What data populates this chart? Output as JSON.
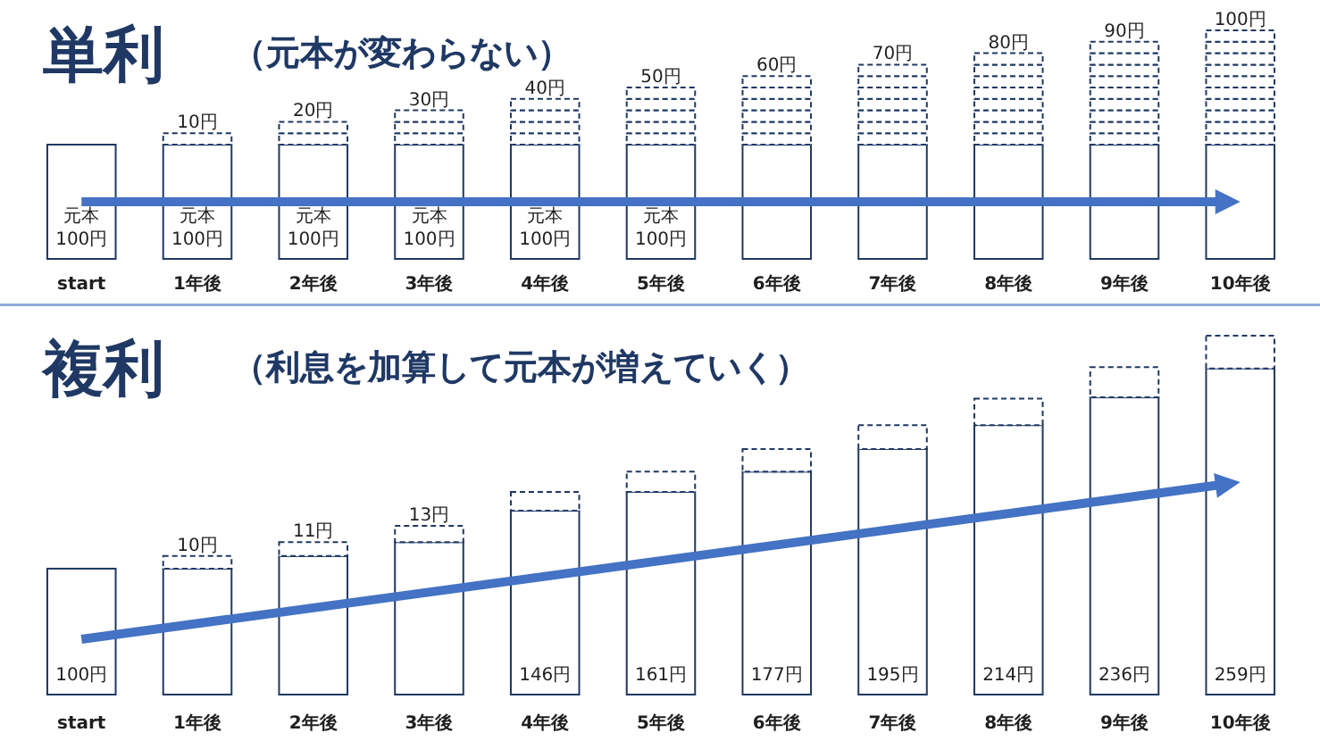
{
  "chart_data": [
    {
      "type": "bar",
      "title": "単利",
      "subtitle": "（元本が変わらない）",
      "stacked": true,
      "categories": [
        "start",
        "1年後",
        "2年後",
        "3年後",
        "4年後",
        "5年後",
        "6年後",
        "7年後",
        "8年後",
        "9年後",
        "10年後"
      ],
      "series": [
        {
          "color": "#1f3864",
          "line_style": "solid",
          "values": [
            100,
            100,
            100,
            100,
            100,
            100,
            100,
            100,
            100,
            100,
            100
          ],
          "value_labels": [
            "元本\n100円",
            "元本\n100円",
            "元本\n100円",
            "元本\n100円",
            "元本\n100円",
            "元本\n100円",
            null,
            null,
            null,
            null,
            null
          ]
        },
        {
          "color": "#1f3864",
          "line_style": "dashed",
          "values": [
            null,
            10,
            10,
            10,
            10,
            10,
            10,
            10,
            10,
            10,
            10
          ]
        },
        {
          "color": "#1f3864",
          "line_style": "dashed",
          "values": [
            null,
            null,
            10,
            10,
            10,
            10,
            10,
            10,
            10,
            10,
            10
          ]
        },
        {
          "color": "#1f3864",
          "line_style": "dashed",
          "values": [
            null,
            null,
            null,
            10,
            10,
            10,
            10,
            10,
            10,
            10,
            10
          ]
        },
        {
          "color": "#1f3864",
          "line_style": "dashed",
          "values": [
            null,
            null,
            null,
            null,
            10,
            10,
            10,
            10,
            10,
            10,
            10
          ]
        },
        {
          "color": "#1f3864",
          "line_style": "dashed",
          "values": [
            null,
            null,
            null,
            null,
            null,
            10,
            10,
            10,
            10,
            10,
            10
          ]
        },
        {
          "color": "#1f3864",
          "line_style": "dashed",
          "values": [
            null,
            null,
            null,
            null,
            null,
            null,
            10,
            10,
            10,
            10,
            10
          ]
        },
        {
          "color": "#1f3864",
          "line_style": "dashed",
          "values": [
            null,
            null,
            null,
            null,
            null,
            null,
            null,
            10,
            10,
            10,
            10
          ]
        },
        {
          "color": "#1f3864",
          "line_style": "dashed",
          "values": [
            null,
            null,
            null,
            null,
            null,
            null,
            null,
            null,
            10,
            10,
            10
          ]
        },
        {
          "color": "#1f3864",
          "line_style": "dashed",
          "values": [
            null,
            null,
            null,
            null,
            null,
            null,
            null,
            null,
            null,
            10,
            10
          ]
        },
        {
          "color": "#1f3864",
          "line_style": "dashed",
          "values": [
            null,
            null,
            null,
            null,
            null,
            null,
            null,
            null,
            null,
            null,
            10
          ]
        }
      ],
      "annotations": [
        {
          "text": "10円",
          "x": "1年後",
          "y": 110
        },
        {
          "text": "20円",
          "x": "2年後",
          "y": 120
        },
        {
          "text": "30円",
          "x": "3年後",
          "y": 130
        },
        {
          "text": "40円",
          "x": "4年後",
          "y": 140
        },
        {
          "text": "50円",
          "x": "5年後",
          "y": 150
        },
        {
          "text": "60円",
          "x": "6年後",
          "y": 160
        },
        {
          "text": "70円",
          "x": "7年後",
          "y": 170
        },
        {
          "text": "80円",
          "x": "8年後",
          "y": 180
        },
        {
          "text": "90円",
          "x": "9年後",
          "y": 190
        },
        {
          "text": "100円",
          "x": "10年後",
          "y": 200
        }
      ]
    },
    {
      "type": "bar",
      "title": "複利",
      "subtitle": "（利息を加算して元本が増えていく）",
      "stacked": true,
      "categories": [
        "start",
        "1年後",
        "2年後",
        "3年後",
        "4年後",
        "5年後",
        "6年後",
        "7年後",
        "8年後",
        "9年後",
        "10年後"
      ],
      "series": [
        {
          "color": "#1f3864",
          "line_style": "solid",
          "values": [
            100,
            100,
            110,
            121,
            146,
            161,
            177,
            195,
            214,
            236,
            259
          ],
          "value_labels": [
            "100円",
            null,
            null,
            null,
            "146円",
            "161円",
            "177円",
            "195円",
            "214円",
            "236円",
            "259円"
          ]
        },
        {
          "color": "#1f3864",
          "line_style": "dashed",
          "values": [
            null,
            10,
            11,
            13,
            15,
            16,
            18,
            19,
            21,
            24,
            26
          ],
          "value_labels": [
            null,
            "10円",
            "11円",
            "13円",
            null,
            null,
            null,
            null,
            null,
            null,
            null
          ]
        }
      ]
    }
  ]
}
